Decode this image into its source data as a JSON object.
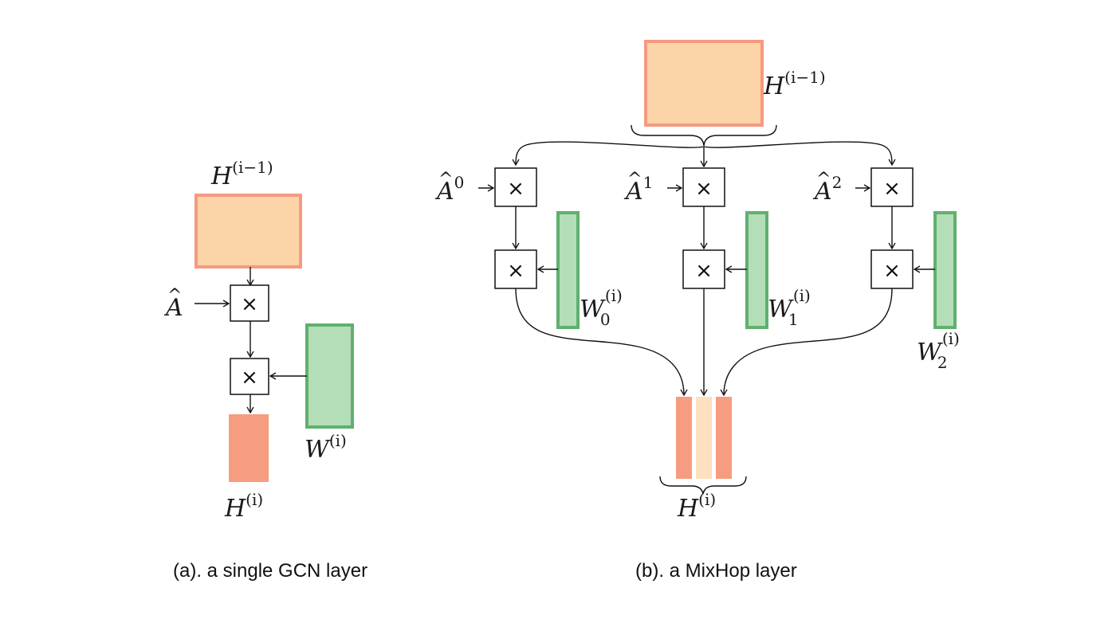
{
  "colors": {
    "hidden_input_fill": "#fdd3a8",
    "hidden_input_stroke": "#f59a80",
    "weight_fill": "#b3deb8",
    "weight_stroke": "#5fb06e",
    "output_fill": "#f69c80",
    "output_mid_fill": "#fde0c0",
    "line": "#111111"
  },
  "operator_symbol": "×",
  "panel_a": {
    "caption": "(a). a single GCN layer",
    "input_label": {
      "base": "H",
      "sup": "(i−1)"
    },
    "adjacency_label": {
      "base": "A",
      "hat": "^"
    },
    "weight_label": {
      "base": "W",
      "sup": "(i)"
    },
    "output_label": {
      "base": "H",
      "sup": "(i)"
    }
  },
  "panel_b": {
    "caption": "(b). a MixHop layer",
    "input_label": {
      "base": "H",
      "sup": "(i−1)"
    },
    "branches": [
      {
        "adjacency": {
          "base": "A",
          "hat": "^",
          "power": "0"
        },
        "weight": {
          "base": "W",
          "sub": "0",
          "sup": "(i)"
        }
      },
      {
        "adjacency": {
          "base": "A",
          "hat": "^",
          "power": "1"
        },
        "weight": {
          "base": "W",
          "sub": "1",
          "sup": "(i)"
        }
      },
      {
        "adjacency": {
          "base": "A",
          "hat": "^",
          "power": "2"
        },
        "weight": {
          "base": "W",
          "sub": "2",
          "sup": "(i)"
        }
      }
    ],
    "output_label": {
      "base": "H",
      "sup": "(i)"
    }
  }
}
